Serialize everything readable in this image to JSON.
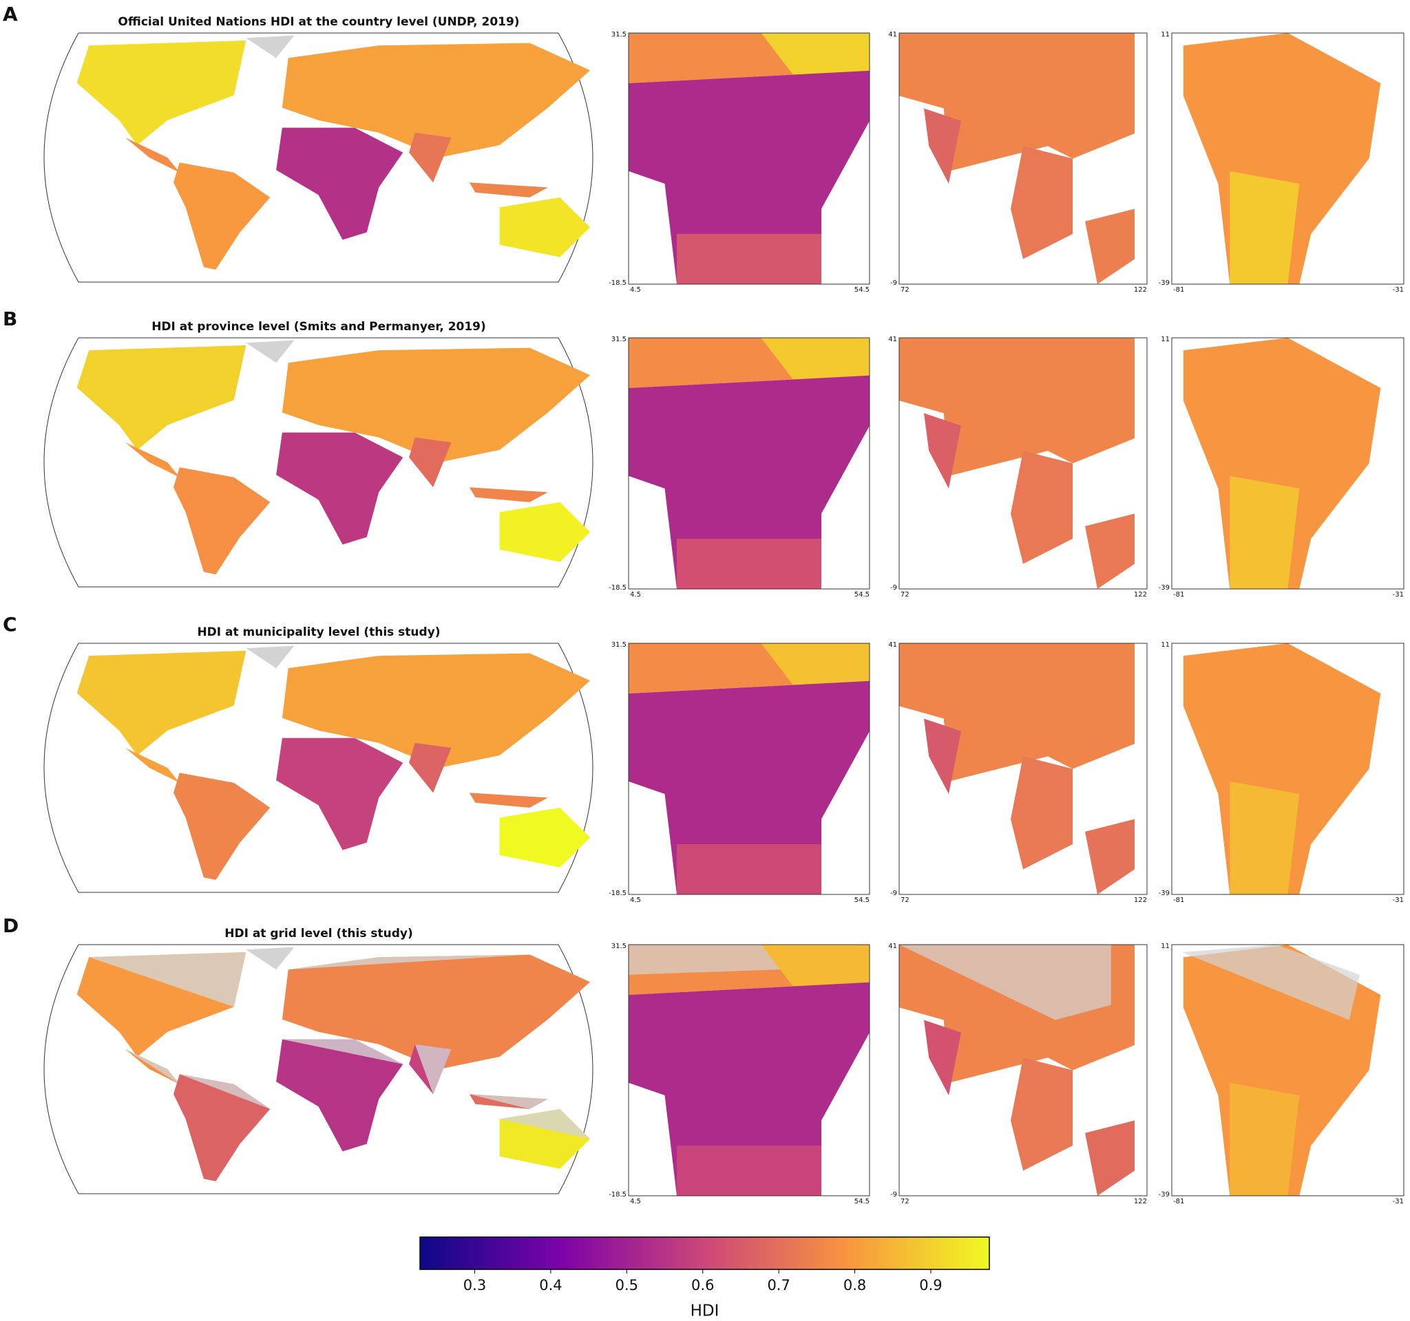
{
  "panels": [
    {
      "label": "A",
      "title": "Official United Nations HDI at the country level (UNDP, 2019)"
    },
    {
      "label": "B",
      "title": "HDI at province level (Smits and Permanyer, 2019)"
    },
    {
      "label": "C",
      "title": "HDI at municipality level (this study)"
    },
    {
      "label": "D",
      "title": "HDI at grid level (this study)"
    }
  ],
  "insets": [
    {
      "xlim": [
        4.5,
        54.5
      ],
      "ylim": [
        -18.5,
        31.5
      ]
    },
    {
      "xlim": [
        72,
        122
      ],
      "ylim": [
        -9,
        41
      ]
    },
    {
      "xlim": [
        -81,
        -31
      ],
      "ylim": [
        -39,
        11
      ]
    }
  ],
  "colorbar": {
    "label": "HDI",
    "lim": [
      0.228,
      0.977
    ],
    "ticks": [
      0.3,
      0.4,
      0.5,
      0.6,
      0.7,
      0.8,
      0.9
    ]
  }
}
